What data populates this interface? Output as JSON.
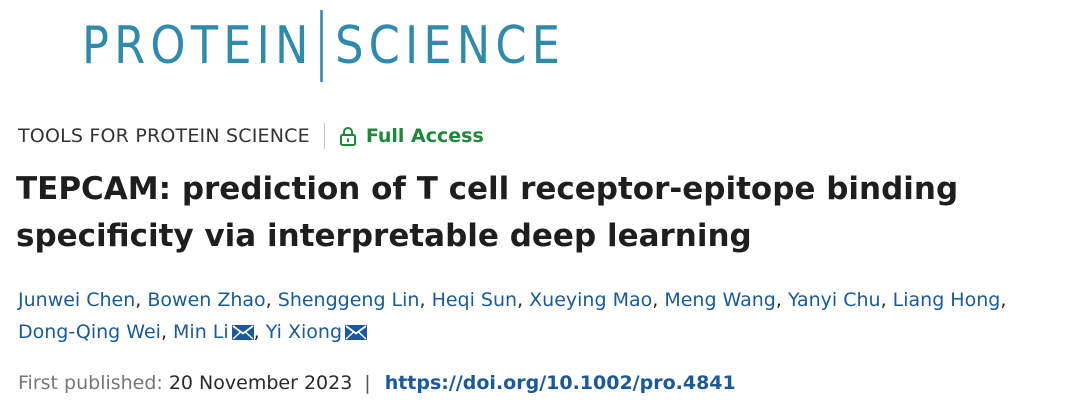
{
  "journal": {
    "name_left": "PROTEIN",
    "name_right": "SCIENCE",
    "brand_color": "#2f8bab"
  },
  "meta": {
    "section": "TOOLS FOR PROTEIN SCIENCE",
    "access_label": "Full Access",
    "access_icon": "lock-icon",
    "access_color": "#1a8a3a"
  },
  "article": {
    "title_line1": "TEPCAM: prediction of T cell receptor-epitope binding",
    "title_line2": "specificity via interpretable deep learning"
  },
  "authors": [
    {
      "name": "Junwei Chen",
      "corresponding": false
    },
    {
      "name": "Bowen Zhao",
      "corresponding": false
    },
    {
      "name": "Shenggeng Lin",
      "corresponding": false
    },
    {
      "name": "Heqi Sun",
      "corresponding": false
    },
    {
      "name": "Xueying Mao",
      "corresponding": false
    },
    {
      "name": "Meng Wang",
      "corresponding": false
    },
    {
      "name": "Yanyi Chu",
      "corresponding": false
    },
    {
      "name": "Liang Hong",
      "corresponding": false
    },
    {
      "name": "Dong-Qing Wei",
      "corresponding": false
    },
    {
      "name": "Min Li",
      "corresponding": true
    },
    {
      "name": "Yi Xiong",
      "corresponding": true
    }
  ],
  "authors_separator": ", ",
  "publication": {
    "label": "First published:",
    "date": "20 November 2023",
    "separator": "|",
    "doi": "https://doi.org/10.1002/pro.4841",
    "link_color": "#1a5a9a"
  }
}
